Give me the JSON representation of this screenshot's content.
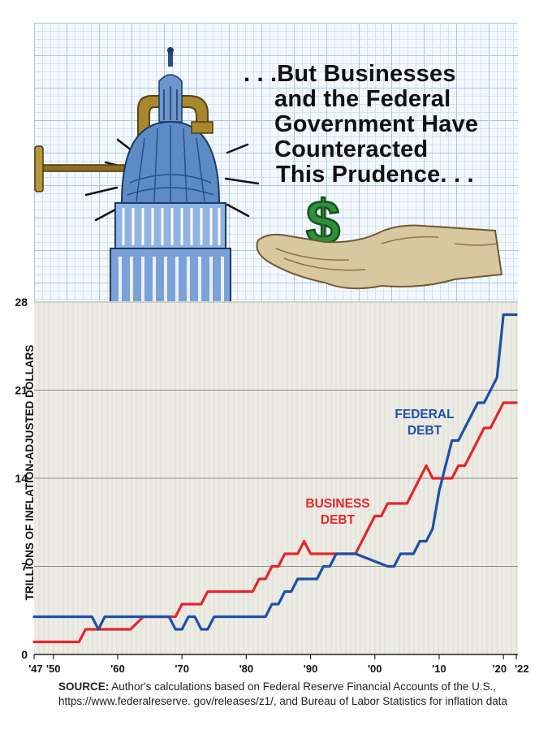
{
  "headline": {
    "lines": [
      ". . .But Businesses",
      "and the Federal",
      "Government Have",
      "Counteracted",
      "This Prudence. . ."
    ]
  },
  "icons": {
    "capitol": "capitol-dome-in-clamp-icon",
    "money_hand": "hand-holding-dollar-sign-icon",
    "dollar_glyph": "$"
  },
  "colors": {
    "federal_debt": "#1f4fa8",
    "business_debt": "#e3262d",
    "chart_bg": "#ecebe4",
    "grid_blue": "#a9c7ea",
    "dollar_green": "#2f8f3a",
    "clamp_gold": "#a8872f"
  },
  "source": {
    "label": "SOURCE:",
    "text": "Author's calculations based on Federal Reserve Financial Accounts of the U.S., https://www.federalreserve. gov/releases/z1/, and Bureau of Labor Statistics for inflation data"
  },
  "chart_data": {
    "type": "line",
    "title": "",
    "xlabel": "",
    "ylabel": "TRILLIONS OF INFLATION-ADJUSTED DOLLARS",
    "ylim": [
      0,
      28
    ],
    "xlim": [
      1947,
      2022
    ],
    "yticks": [
      0,
      7,
      14,
      21,
      28
    ],
    "xticks": [
      {
        "value": 1947,
        "label": "'47"
      },
      {
        "value": 1950,
        "label": "'50"
      },
      {
        "value": 1960,
        "label": "'60"
      },
      {
        "value": 1970,
        "label": "'70"
      },
      {
        "value": 1980,
        "label": "'80"
      },
      {
        "value": 1990,
        "label": "'90"
      },
      {
        "value": 2000,
        "label": "'00"
      },
      {
        "value": 2010,
        "label": "'10"
      },
      {
        "value": 2020,
        "label": "'20"
      },
      {
        "value": 2022,
        "label": "'22"
      }
    ],
    "grid": true,
    "legend": "inline labels",
    "series": [
      {
        "name": "FEDERAL DEBT",
        "label_lines": [
          "FEDERAL",
          "DEBT"
        ],
        "color": "#1f4fa8",
        "x": [
          1947,
          1956,
          1957,
          1958,
          1964,
          1965,
          1967,
          1968,
          1969,
          1970,
          1971,
          1972,
          1973,
          1974,
          1975,
          1977,
          1983,
          1984,
          1985,
          1986,
          1987,
          1988,
          1989,
          1990,
          1991,
          1992,
          1993,
          1994,
          1995,
          1996,
          1997,
          2002,
          2003,
          2004,
          2005,
          2006,
          2007,
          2008,
          2009,
          2010,
          2011,
          2012,
          2013,
          2014,
          2015,
          2016,
          2017,
          2018,
          2019,
          2020,
          2021,
          2022
        ],
        "y": [
          3,
          3,
          2,
          3,
          3,
          3,
          3,
          3,
          2,
          2,
          3,
          3,
          2,
          2,
          3,
          3,
          3,
          4,
          4,
          5,
          5,
          6,
          6,
          6,
          6,
          7,
          7,
          8,
          8,
          8,
          8,
          7,
          7,
          8,
          8,
          8,
          9,
          9,
          10,
          13,
          15,
          17,
          17,
          18,
          19,
          20,
          20,
          21,
          22,
          27,
          27,
          27
        ]
      },
      {
        "name": "BUSINESS DEBT",
        "label_lines": [
          "BUSINESS",
          "DEBT"
        ],
        "color": "#e3262d",
        "x": [
          1947,
          1953,
          1954,
          1955,
          1960,
          1962,
          1964,
          1965,
          1967,
          1968,
          1969,
          1970,
          1971,
          1972,
          1973,
          1974,
          1980,
          1981,
          1982,
          1983,
          1984,
          1985,
          1986,
          1987,
          1988,
          1989,
          1990,
          1991,
          1992,
          1993,
          1997,
          1998,
          1999,
          2000,
          2001,
          2002,
          2003,
          2004,
          2005,
          2006,
          2007,
          2008,
          2009,
          2010,
          2011,
          2012,
          2013,
          2014,
          2015,
          2016,
          2017,
          2018,
          2019,
          2020,
          2021,
          2022
        ],
        "y": [
          1,
          1,
          1,
          2,
          2,
          2,
          3,
          3,
          3,
          3,
          3,
          4,
          4,
          4,
          4,
          5,
          5,
          5,
          6,
          6,
          7,
          7,
          8,
          8,
          8,
          9,
          8,
          8,
          8,
          8,
          8,
          9,
          10,
          11,
          11,
          12,
          12,
          12,
          12,
          13,
          14,
          15,
          14,
          14,
          14,
          14,
          15,
          15,
          16,
          17,
          18,
          18,
          19,
          20,
          20,
          20
        ]
      }
    ]
  }
}
